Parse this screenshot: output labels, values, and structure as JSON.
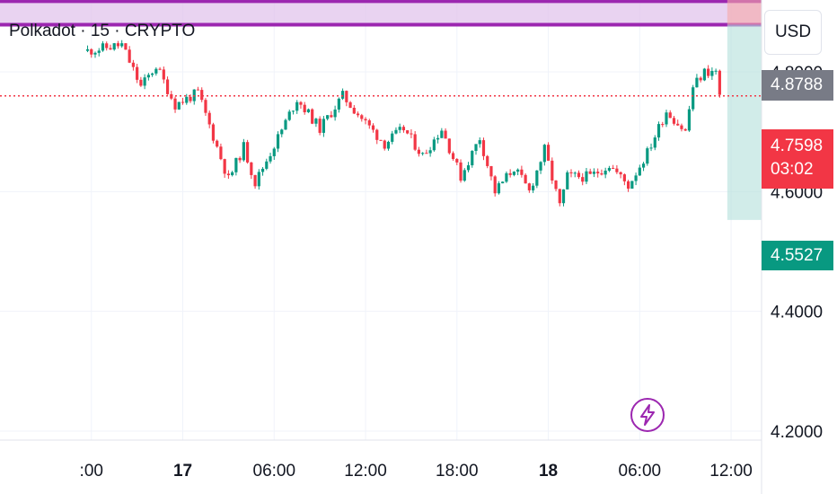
{
  "chart_data": {
    "type": "candlestick",
    "title": "Polkadot · 15 · CRYPTO",
    "currency": "USD",
    "y_range": [
      4.185,
      4.92
    ],
    "y_ticks": [
      4.2,
      4.4,
      4.6,
      4.8
    ],
    "y_tick_labels": [
      "4.2000",
      "4.4000",
      "4.6000",
      "4.8000"
    ],
    "time_start": "2024-10-16T12:00",
    "time_end": "2024-10-18T14:00",
    "x_ticks": [
      {
        "label": ":00",
        "time": "2024-10-16T18:00",
        "bold": false
      },
      {
        "label": "17",
        "time": "2024-10-17T00:00",
        "bold": true
      },
      {
        "label": "06:00",
        "time": "2024-10-17T06:00",
        "bold": false
      },
      {
        "label": "12:00",
        "time": "2024-10-17T12:00",
        "bold": false
      },
      {
        "label": "18:00",
        "time": "2024-10-17T18:00",
        "bold": false
      },
      {
        "label": "18",
        "time": "2024-10-18T00:00",
        "bold": true
      },
      {
        "label": "06:00",
        "time": "2024-10-18T06:00",
        "bold": false
      },
      {
        "label": "12:00",
        "time": "2024-10-18T12:00",
        "bold": false
      }
    ],
    "resistance_zone": {
      "top": 4.918,
      "bottom": 4.8788,
      "label": "4.8788"
    },
    "last_price": {
      "value": 4.7598,
      "label": "4.7598",
      "countdown": "03:02"
    },
    "projection": {
      "time": "2024-10-18T11:45",
      "high": 4.935,
      "entry": 4.8788,
      "low": 4.5527,
      "low_label": "4.5527"
    },
    "colors": {
      "up": "#089981",
      "down": "#f23645",
      "zone": "#9c27b0",
      "zone_fill": "#e1c4ec",
      "grid": "#f0f3fa"
    },
    "path": [
      {
        "t": "2024-10-16T17:45",
        "p": 4.835
      },
      {
        "t": "2024-10-16T20:00",
        "p": 4.845
      },
      {
        "t": "2024-10-16T21:15",
        "p": 4.775
      },
      {
        "t": "2024-10-16T22:15",
        "p": 4.81
      },
      {
        "t": "2024-10-16T23:30",
        "p": 4.745
      },
      {
        "t": "2024-10-17T01:00",
        "p": 4.765
      },
      {
        "t": "2024-10-17T03:00",
        "p": 4.62
      },
      {
        "t": "2024-10-17T04:00",
        "p": 4.675
      },
      {
        "t": "2024-10-17T04:45",
        "p": 4.615
      },
      {
        "t": "2024-10-17T06:15",
        "p": 4.69
      },
      {
        "t": "2024-10-17T07:30",
        "p": 4.755
      },
      {
        "t": "2024-10-17T09:00",
        "p": 4.705
      },
      {
        "t": "2024-10-17T10:30",
        "p": 4.76
      },
      {
        "t": "2024-10-17T12:00",
        "p": 4.715
      },
      {
        "t": "2024-10-17T13:15",
        "p": 4.68
      },
      {
        "t": "2024-10-17T14:30",
        "p": 4.705
      },
      {
        "t": "2024-10-17T15:45",
        "p": 4.66
      },
      {
        "t": "2024-10-17T17:00",
        "p": 4.705
      },
      {
        "t": "2024-10-17T18:15",
        "p": 4.625
      },
      {
        "t": "2024-10-17T19:30",
        "p": 4.69
      },
      {
        "t": "2024-10-17T20:30",
        "p": 4.6
      },
      {
        "t": "2024-10-17T21:45",
        "p": 4.64
      },
      {
        "t": "2024-10-17T22:45",
        "p": 4.6
      },
      {
        "t": "2024-10-17T23:45",
        "p": 4.67
      },
      {
        "t": "2024-10-18T00:45",
        "p": 4.575
      },
      {
        "t": "2024-10-18T01:15",
        "p": 4.625
      },
      {
        "t": "2024-10-18T02:45",
        "p": 4.625
      },
      {
        "t": "2024-10-18T04:00",
        "p": 4.645
      },
      {
        "t": "2024-10-18T05:15",
        "p": 4.61
      },
      {
        "t": "2024-10-18T06:30",
        "p": 4.665
      },
      {
        "t": "2024-10-18T07:45",
        "p": 4.735
      },
      {
        "t": "2024-10-18T09:00",
        "p": 4.7
      },
      {
        "t": "2024-10-18T09:30",
        "p": 4.775
      },
      {
        "t": "2024-10-18T10:15",
        "p": 4.8
      },
      {
        "t": "2024-10-18T11:00",
        "p": 4.8
      },
      {
        "t": "2024-10-18T11:15",
        "p": 4.76
      }
    ]
  }
}
